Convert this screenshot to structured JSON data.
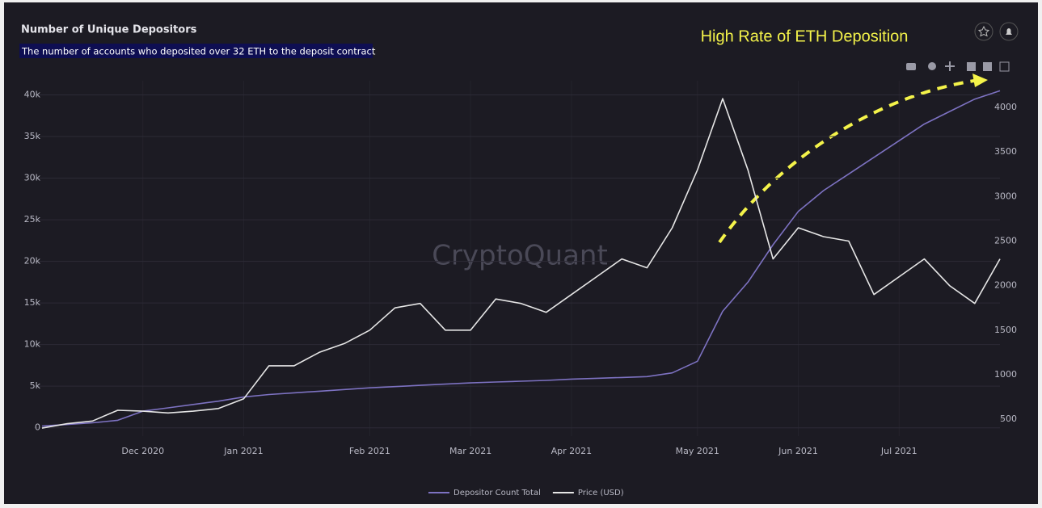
{
  "chart_data": {
    "type": "line",
    "title": "Number of Unique Depositors",
    "subtitle": "The number of accounts who deposited over 32 ETH to the deposit contract",
    "annotation": "High Rate of ETH Deposition",
    "watermark": "CryptoQuant",
    "categories": [
      null,
      null,
      null,
      null,
      "Dec 2020",
      null,
      null,
      null,
      "Jan 2021",
      null,
      null,
      null,
      null,
      "Feb 2021",
      null,
      null,
      null,
      "Mar 2021",
      null,
      null,
      null,
      "Apr 2021",
      null,
      null,
      null,
      null,
      "May 2021",
      null,
      null,
      null,
      "Jun 2021",
      null,
      null,
      null,
      "Jul 2021",
      null,
      null,
      null,
      null
    ],
    "series": [
      {
        "name": "Depositor Count Total",
        "color": "#7d72c2",
        "axis": "y",
        "values": [
          200,
          400,
          600,
          900,
          2000,
          2400,
          2800,
          3200,
          3700,
          4000,
          4200,
          4400,
          4600,
          4800,
          4950,
          5100,
          5250,
          5400,
          5500,
          5600,
          5700,
          5850,
          5950,
          6050,
          6150,
          6600,
          8000,
          14000,
          17500,
          22000,
          26000,
          28500,
          30500,
          32500,
          34500,
          36500,
          38000,
          39500,
          40500
        ]
      },
      {
        "name": "Price (USD)",
        "color": "#e6e6e6",
        "axis": "y2",
        "values": [
          400,
          450,
          480,
          600,
          590,
          570,
          590,
          620,
          730,
          1100,
          1100,
          1250,
          1350,
          1500,
          1750,
          1800,
          1500,
          1500,
          1850,
          1800,
          1700,
          1900,
          2100,
          2300,
          2200,
          2650,
          3300,
          4100,
          3300,
          2300,
          2650,
          2550,
          2500,
          1900,
          2100,
          2300,
          2000,
          1800,
          2300
        ]
      }
    ],
    "ylim": [
      -1000,
      41700
    ],
    "yticks": [
      0,
      {
        "value": 5000,
        "label": "5k"
      },
      {
        "value": 10000,
        "label": "10k"
      },
      {
        "value": 15000,
        "label": "15k"
      },
      {
        "value": 20000,
        "label": "20k"
      },
      {
        "value": 25000,
        "label": "25k"
      },
      {
        "value": 30000,
        "label": "30k"
      },
      {
        "value": 35000,
        "label": "35k"
      },
      {
        "value": 40000,
        "label": "40k"
      }
    ],
    "y2lim": [
      310,
      4300
    ],
    "y2ticks": [
      500,
      1000,
      1500,
      2000,
      2500,
      3000,
      3500,
      4000
    ],
    "grid": true,
    "legend": "bottom"
  }
}
